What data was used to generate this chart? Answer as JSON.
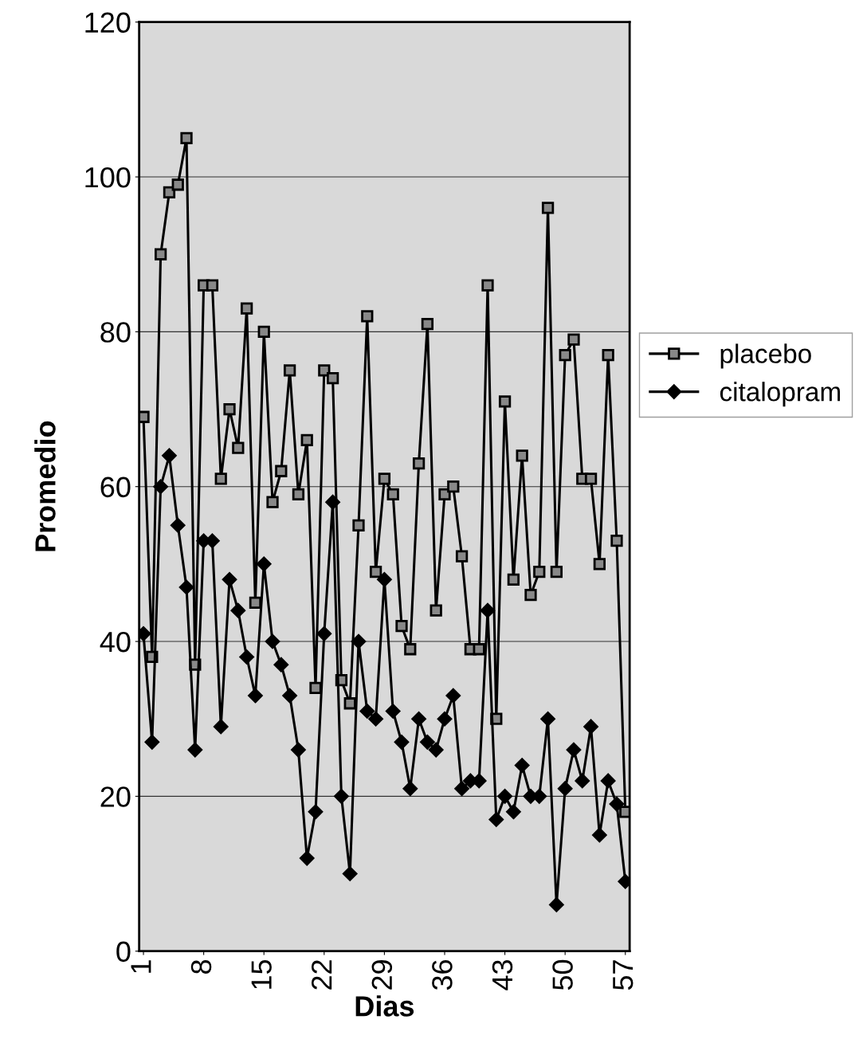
{
  "chart_data": {
    "type": "line",
    "xlabel": "Dias",
    "ylabel": "Promedio",
    "x": [
      1,
      2,
      3,
      4,
      5,
      6,
      7,
      8,
      9,
      10,
      11,
      12,
      13,
      14,
      15,
      16,
      17,
      18,
      19,
      20,
      21,
      22,
      23,
      24,
      25,
      26,
      27,
      28,
      29,
      30,
      31,
      32,
      33,
      34,
      35,
      36,
      37,
      38,
      39,
      40,
      41,
      42,
      43,
      44,
      45,
      46,
      47,
      48,
      49,
      50,
      51,
      52,
      53,
      54,
      55,
      56,
      57
    ],
    "series": [
      {
        "name": "placebo",
        "color": "#000000",
        "marker": "square",
        "values": [
          69,
          38,
          90,
          98,
          99,
          105,
          37,
          86,
          86,
          61,
          70,
          65,
          83,
          45,
          80,
          58,
          62,
          75,
          59,
          66,
          34,
          75,
          74,
          35,
          32,
          55,
          82,
          49,
          61,
          59,
          42,
          39,
          63,
          81,
          44,
          59,
          60,
          51,
          39,
          39,
          86,
          30,
          71,
          48,
          64,
          46,
          49,
          96,
          49,
          77,
          79,
          61,
          61,
          50,
          77,
          53,
          18
        ]
      },
      {
        "name": "citalopram",
        "color": "#000000",
        "marker": "diamond",
        "values": [
          41,
          27,
          60,
          64,
          55,
          47,
          26,
          53,
          53,
          29,
          48,
          44,
          38,
          33,
          50,
          40,
          37,
          33,
          26,
          12,
          18,
          41,
          58,
          20,
          10,
          40,
          31,
          30,
          48,
          31,
          27,
          21,
          30,
          27,
          26,
          30,
          33,
          21,
          22,
          22,
          44,
          17,
          20,
          18,
          24,
          20,
          20,
          30,
          6,
          21,
          26,
          22,
          29,
          15,
          22,
          19,
          9
        ]
      }
    ],
    "xlim": [
      0.5,
      57.5
    ],
    "xticks": [
      1,
      8,
      15,
      22,
      29,
      36,
      43,
      50,
      57
    ],
    "ylim": [
      0,
      120
    ],
    "yticks": [
      0,
      20,
      40,
      60,
      80,
      100,
      120
    ],
    "grid": "y",
    "legend": "right",
    "line_style": "solid"
  }
}
